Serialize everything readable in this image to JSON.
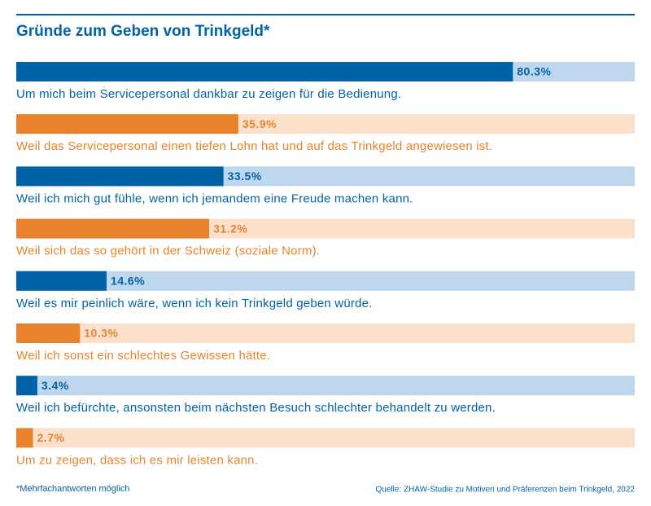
{
  "chart_data": {
    "type": "bar",
    "orientation": "horizontal",
    "title": "Gründe zum Geben von Trinkgeld*",
    "categories": [
      "Um mich beim Servicepersonal dankbar zu zeigen für die Bedienung.",
      "Weil das Servicepersonal einen tiefen Lohn hat und auf das Trinkgeld angewiesen ist.",
      "Weil ich mich gut fühle, wenn ich jemandem eine Freude machen kann.",
      "Weil sich das so gehört in der Schweiz (soziale Norm).",
      "Weil es mir peinlich wäre, wenn ich kein Trinkgeld geben würde.",
      "Weil ich sonst ein schlechtes Gewissen hätte.",
      "Weil ich befürchte, ansonsten beim nächsten Besuch schlechter behandelt zu werden.",
      "Um zu zeigen, dass ich es mir leisten kann."
    ],
    "values": [
      80.3,
      35.9,
      33.5,
      31.2,
      14.6,
      10.3,
      3.4,
      2.7
    ],
    "value_labels": [
      "80.3%",
      "35.9%",
      "33.5%",
      "31.2%",
      "14.6%",
      "10.3%",
      "3.4%",
      "2.7%"
    ],
    "colors": [
      "#0062a7",
      "#e8832b",
      "#0062a7",
      "#e8832b",
      "#0062a7",
      "#e8832b",
      "#0062a7",
      "#e8832b"
    ],
    "track_colors": [
      "#bfd7ec",
      "#fbe1cc",
      "#bfd7ec",
      "#fbe1cc",
      "#bfd7ec",
      "#fbe1cc",
      "#bfd7ec",
      "#fbe1cc"
    ],
    "xlim": [
      0,
      100
    ],
    "footnote": "*Mehrfachantworten möglich",
    "source": "Quelle: ZHAW-Studie zu Motiven und Präferenzen beim Trinkgeld, 2022"
  }
}
